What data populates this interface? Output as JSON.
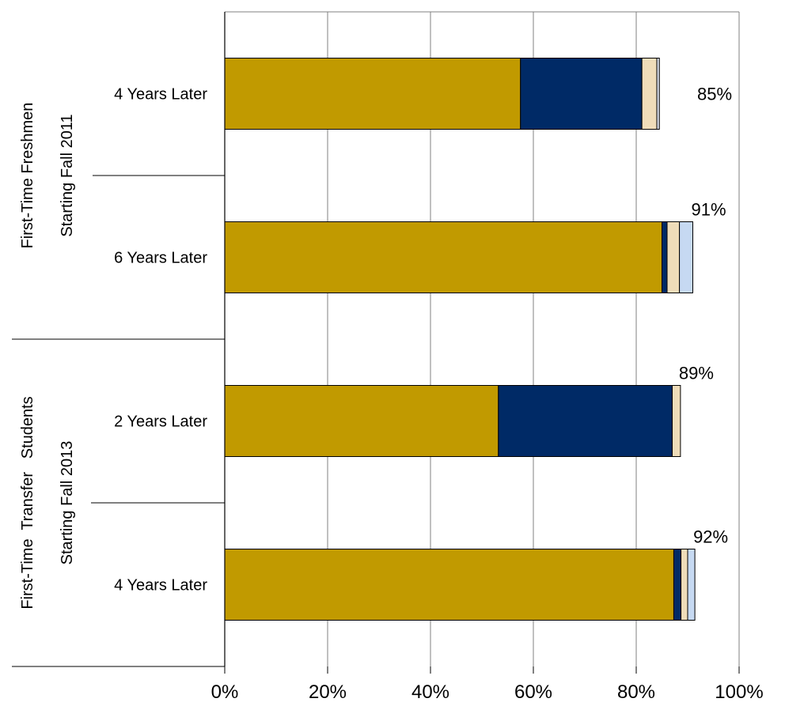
{
  "chart_data": {
    "type": "bar",
    "orientation": "horizontal",
    "stacked": true,
    "title": "",
    "xlabel": "",
    "ylabel": "",
    "xlim": [
      0,
      100
    ],
    "x_ticks": [
      "0%",
      "20%",
      "40%",
      "60%",
      "80%",
      "100%"
    ],
    "grid": "vertical",
    "legend": "none",
    "groups": [
      {
        "line1": "First-Time Freshmen",
        "line2": "Starting Fall 2011"
      },
      {
        "line1": "First-Time  Transfer   Students",
        "line2": "Starting Fall 2013"
      }
    ],
    "categories": [
      "4 Years Later",
      "6 Years Later",
      "2 Years Later",
      "4 Years Later"
    ],
    "category_group": [
      0,
      0,
      1,
      1
    ],
    "series": [
      {
        "color": "#c19a00",
        "values": [
          57.5,
          85.0,
          53.2,
          87.3
        ]
      },
      {
        "color": "#002a66",
        "values": [
          23.6,
          1.0,
          33.8,
          1.4
        ]
      },
      {
        "color": "#efdcb9",
        "values": [
          2.9,
          2.4,
          1.6,
          1.3
        ]
      },
      {
        "color": "#d8ddea",
        "values": [
          0.5,
          0.0,
          0.0,
          0.0
        ]
      },
      {
        "color": "#c6d9f2",
        "values": [
          0.0,
          2.6,
          0.0,
          1.4
        ]
      }
    ],
    "totals": [
      "85%",
      "91%",
      "89%",
      "92%"
    ]
  }
}
